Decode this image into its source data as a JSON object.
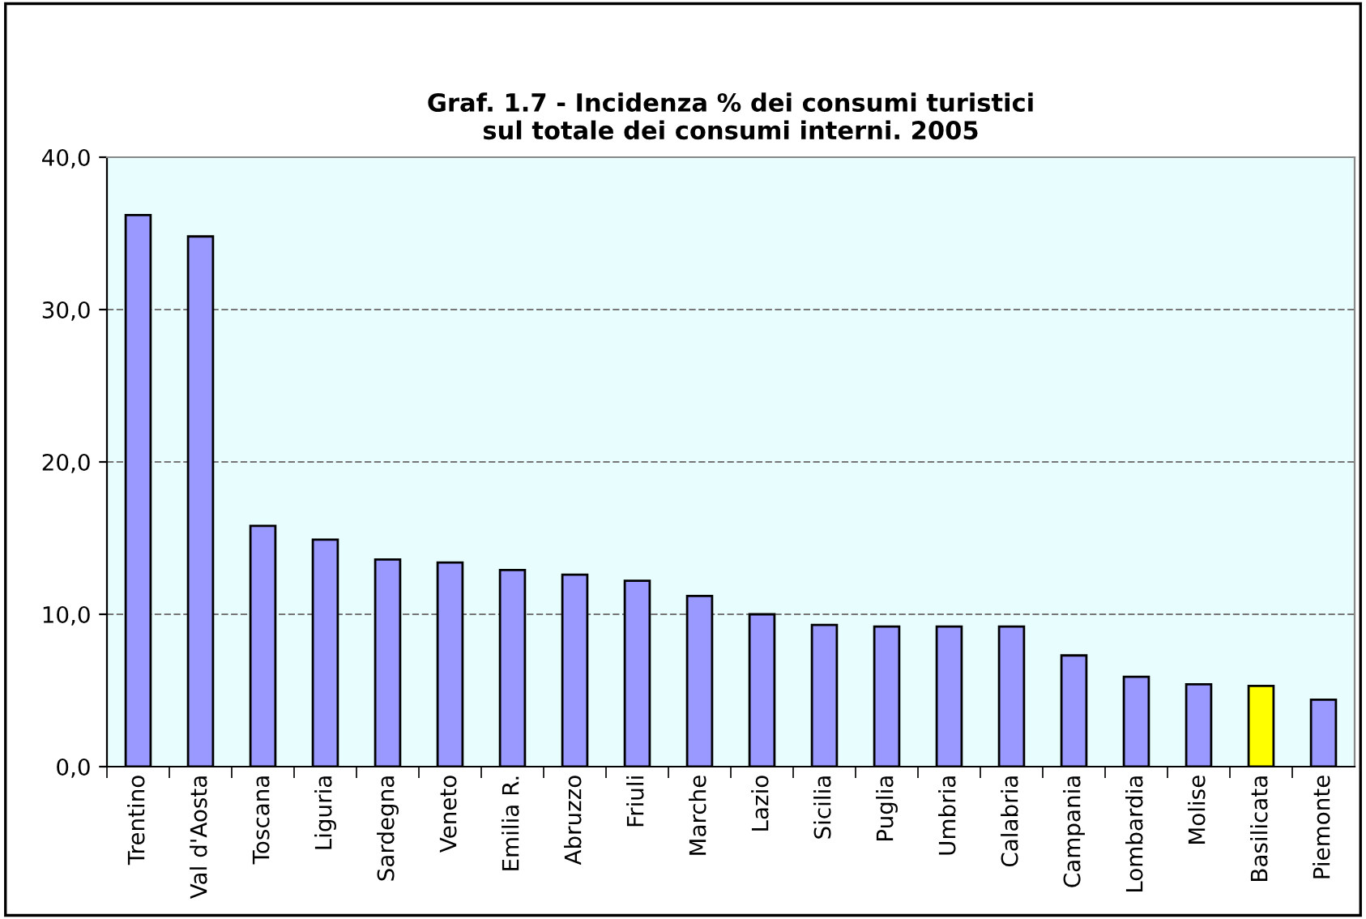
{
  "chart_data": {
    "type": "bar",
    "title": "Graf. 1.7 - Incidenza % dei consumi turistici\nsul totale dei consumi interni. 2005",
    "categories": [
      "Trentino",
      "Val d'Aosta",
      "Toscana",
      "Liguria",
      "Sardegna",
      "Veneto",
      "Emilia R.",
      "Abruzzo",
      "Friuli",
      "Marche",
      "Lazio",
      "Sicilia",
      "Puglia",
      "Umbria",
      "Calabria",
      "Campania",
      "Lombardia",
      "Molise",
      "Basilicata",
      "Piemonte"
    ],
    "values": [
      36.2,
      34.8,
      15.8,
      14.9,
      13.6,
      13.4,
      12.9,
      12.6,
      12.2,
      11.2,
      10.0,
      9.3,
      9.2,
      9.2,
      9.2,
      7.3,
      5.9,
      5.4,
      5.3,
      4.4
    ],
    "colors": [
      "#9999ff",
      "#9999ff",
      "#9999ff",
      "#9999ff",
      "#9999ff",
      "#9999ff",
      "#9999ff",
      "#9999ff",
      "#9999ff",
      "#9999ff",
      "#9999ff",
      "#9999ff",
      "#9999ff",
      "#9999ff",
      "#9999ff",
      "#9999ff",
      "#9999ff",
      "#9999ff",
      "#ffff00",
      "#9999ff"
    ],
    "ylim": [
      0,
      40
    ],
    "yticks": [
      {
        "value": 0,
        "label": "0,0"
      },
      {
        "value": 10,
        "label": "10,0"
      },
      {
        "value": 20,
        "label": "20,0"
      },
      {
        "value": 30,
        "label": "30,0"
      },
      {
        "value": 40,
        "label": "40,0"
      }
    ],
    "grid": "y"
  }
}
